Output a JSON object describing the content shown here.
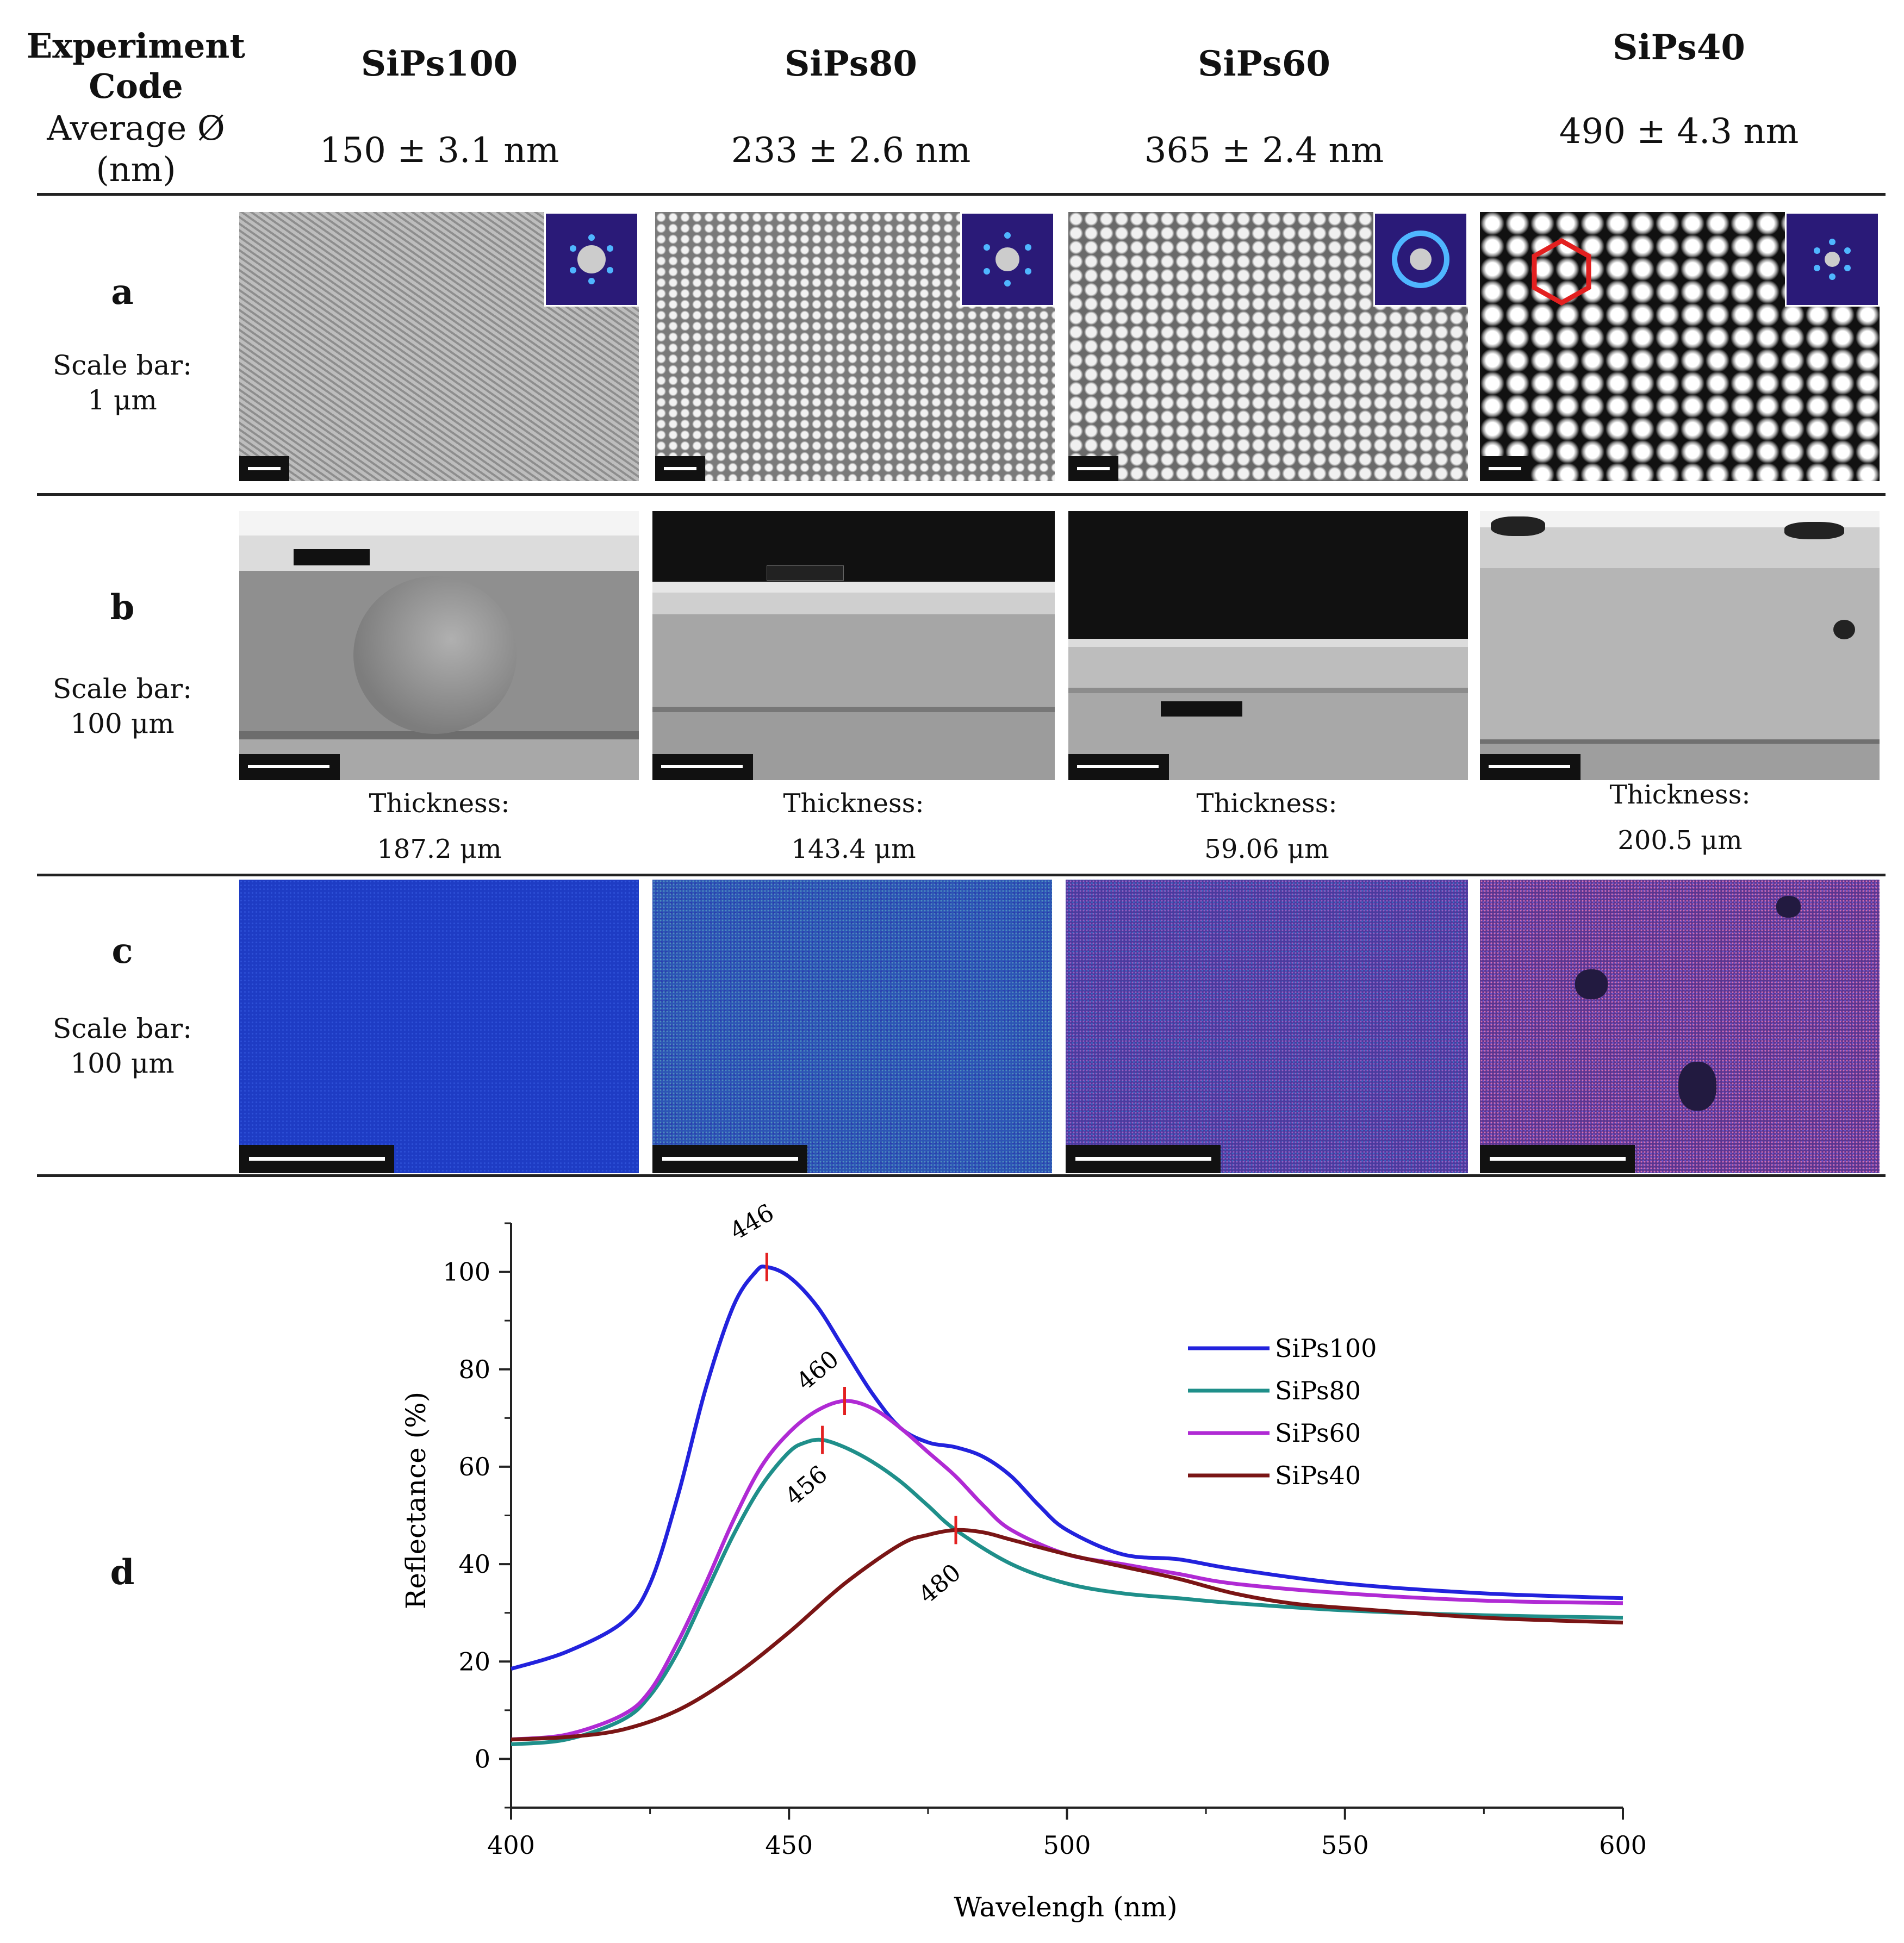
{
  "header": {
    "experiment_code": "Experiment Code",
    "experiment_code_l1": "Experiment",
    "experiment_code_l2": "Code",
    "average_label": "Average Ø (nm)",
    "average_label_l1": "Average Ø",
    "average_label_l2": "(nm)"
  },
  "samples": [
    {
      "code": "SiPs100",
      "size": "150 ± 3.1 nm",
      "thickness_label": "Thickness:",
      "thickness": "187.2 μm"
    },
    {
      "code": "SiPs80",
      "size": "233 ± 2.6 nm",
      "thickness_label": "Thickness:",
      "thickness": "143.4 μm"
    },
    {
      "code": "SiPs60",
      "size": "365 ± 2.4 nm",
      "thickness_label": "Thickness:",
      "thickness": "59.06 μm"
    },
    {
      "code": "SiPs40",
      "size": "490 ± 4.3 nm",
      "thickness_label": "Thickness:",
      "thickness": "200.5 μm"
    }
  ],
  "rows": [
    {
      "letter": "a",
      "scale_label": "Scale bar:",
      "scale_value": "1 μm",
      "content": "SEM top-view images with FFT insets"
    },
    {
      "letter": "b",
      "scale_label": "Scale bar:",
      "scale_value": "100 μm",
      "content": "SEM cross-section images"
    },
    {
      "letter": "c",
      "scale_label": "Scale bar:",
      "scale_value": "100 μm",
      "content": "Optical microscopy images"
    },
    {
      "letter": "d"
    }
  ],
  "colors": {
    "SiPs100": "#2222dd",
    "SiPs80": "#1f8f8a",
    "SiPs60": "#b02ad4",
    "SiPs40": "#7a1515",
    "peak_marker": "#e32020",
    "hexagon": "#e32020"
  },
  "chart_data": {
    "type": "line",
    "xlabel": "Wavelengh (nm)",
    "ylabel": "Reflectance (%)",
    "xlim": [
      400,
      600
    ],
    "ylim": [
      -10,
      110
    ],
    "xticks": [
      400,
      450,
      500,
      550,
      600
    ],
    "yticks": [
      0,
      20,
      40,
      60,
      80,
      100
    ],
    "grid": false,
    "legend_position": "right",
    "series": [
      {
        "name": "SiPs100",
        "x": [
          400,
          410,
          420,
          425,
          430,
          435,
          440,
          444,
          446,
          450,
          455,
          460,
          465,
          470,
          475,
          480,
          485,
          490,
          495,
          500,
          510,
          520,
          530,
          550,
          575,
          600
        ],
        "y": [
          18.5,
          22,
          28,
          36,
          54,
          76,
          93,
          100,
          101,
          99,
          93,
          84,
          75,
          68,
          65,
          64,
          62,
          58,
          52,
          47,
          42,
          41,
          39,
          36,
          34,
          33
        ]
      },
      {
        "name": "SiPs80",
        "x": [
          400,
          410,
          420,
          425,
          430,
          435,
          440,
          445,
          450,
          453,
          456,
          460,
          465,
          470,
          475,
          480,
          490,
          500,
          510,
          520,
          530,
          550,
          575,
          600
        ],
        "y": [
          3,
          4,
          8,
          13,
          22,
          34,
          46,
          56,
          63,
          65,
          65.5,
          64,
          61,
          57,
          52,
          47,
          40,
          36,
          34,
          33,
          32,
          30.5,
          29.5,
          29
        ]
      },
      {
        "name": "SiPs60",
        "x": [
          400,
          410,
          420,
          425,
          430,
          435,
          440,
          445,
          450,
          455,
          460,
          465,
          470,
          475,
          480,
          485,
          490,
          500,
          510,
          520,
          530,
          550,
          575,
          600
        ],
        "y": [
          4,
          5,
          9,
          14,
          24,
          36,
          49,
          60,
          67,
          71.5,
          73.5,
          72,
          68,
          63,
          58,
          52,
          47,
          42,
          40,
          38,
          36,
          34,
          32.5,
          32
        ]
      },
      {
        "name": "SiPs40",
        "x": [
          400,
          410,
          420,
          430,
          440,
          450,
          460,
          470,
          475,
          480,
          485,
          490,
          500,
          510,
          520,
          530,
          540,
          550,
          575,
          600
        ],
        "y": [
          4,
          4.5,
          6,
          10,
          17,
          26,
          36,
          44,
          46,
          47,
          46.5,
          45,
          42,
          39.5,
          37,
          34,
          32,
          31,
          29,
          28
        ]
      }
    ],
    "annotations": [
      {
        "text": "446",
        "x": 446,
        "y": 101,
        "series": "SiPs100"
      },
      {
        "text": "460",
        "x": 460,
        "y": 73.5,
        "series": "SiPs60"
      },
      {
        "text": "456",
        "x": 456,
        "y": 65.5,
        "series": "SiPs80"
      },
      {
        "text": "480",
        "x": 480,
        "y": 47,
        "series": "SiPs40"
      }
    ]
  }
}
